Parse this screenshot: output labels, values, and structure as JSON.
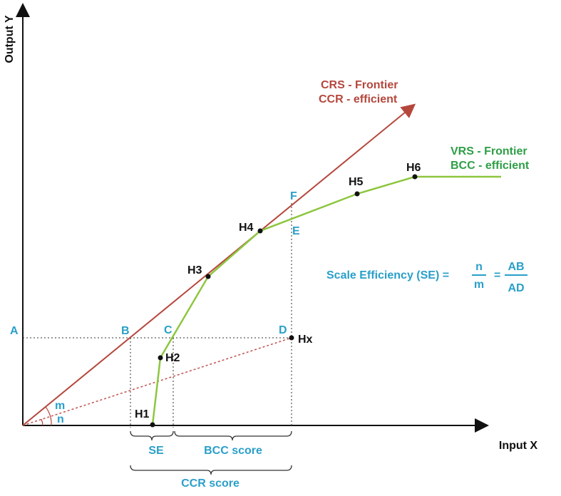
{
  "axes": {
    "y_label": "Output Y",
    "x_label": "Input X"
  },
  "crs_frontier": {
    "line1": "CRS - Frontier",
    "line2": "CCR - efficient"
  },
  "vrs_frontier": {
    "line1": "VRS - Frontier",
    "line2": "BCC - efficient"
  },
  "points": [
    "H1",
    "H2",
    "H3",
    "H4",
    "H5",
    "H6",
    "Hx"
  ],
  "letters": [
    "A",
    "B",
    "C",
    "D",
    "E",
    "F"
  ],
  "angles": [
    "m",
    "n"
  ],
  "formula": {
    "lead": "Scale Efficiency (SE) =",
    "num1": "n",
    "den1": "m",
    "eq": "=",
    "num2": "AB",
    "den2": "AD"
  },
  "braces": [
    "SE",
    "BCC score",
    "CCR score"
  ]
}
